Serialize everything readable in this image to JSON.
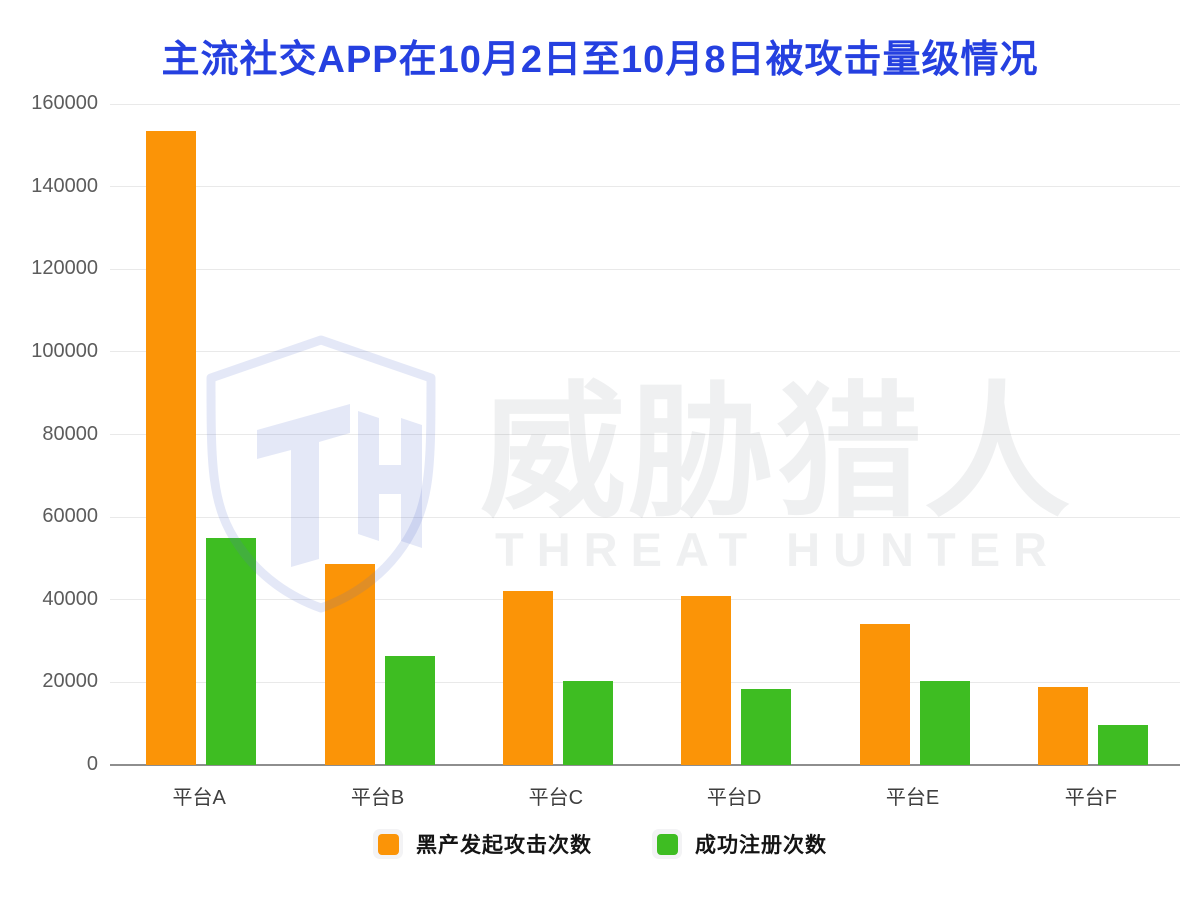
{
  "title": "主流社交APP在10月2日至10月8日被攻击量级情况",
  "watermark": {
    "logo_text": "TH",
    "brand_cn": "威胁猎人",
    "brand_en": "THREAT HUNTER"
  },
  "colors": {
    "title_blue": "#2540e0",
    "attack_orange": "#fb9407",
    "register_green": "#3ebd22",
    "gridline": "#e9e9e9",
    "axis": "#8e8e8e"
  },
  "chart_data": {
    "type": "bar",
    "title": "主流社交APP在10月2日至10月8日被攻击量级情况",
    "categories": [
      "平台A",
      "平台B",
      "平台C",
      "平台D",
      "平台E",
      "平台F"
    ],
    "series": [
      {
        "name": "黑产发起攻击次数",
        "color": "#fb9407",
        "values": [
          153500,
          48700,
          42000,
          41000,
          34100,
          19000
        ]
      },
      {
        "name": "成功注册次数",
        "color": "#3ebd22",
        "values": [
          55000,
          26400,
          20300,
          18500,
          20300,
          9700
        ]
      }
    ],
    "xlabel": "",
    "ylabel": "",
    "ylim": [
      0,
      160000
    ],
    "yticks": [
      0,
      20000,
      40000,
      60000,
      80000,
      100000,
      120000,
      140000,
      160000
    ],
    "grid": true,
    "legend_position": "bottom"
  }
}
